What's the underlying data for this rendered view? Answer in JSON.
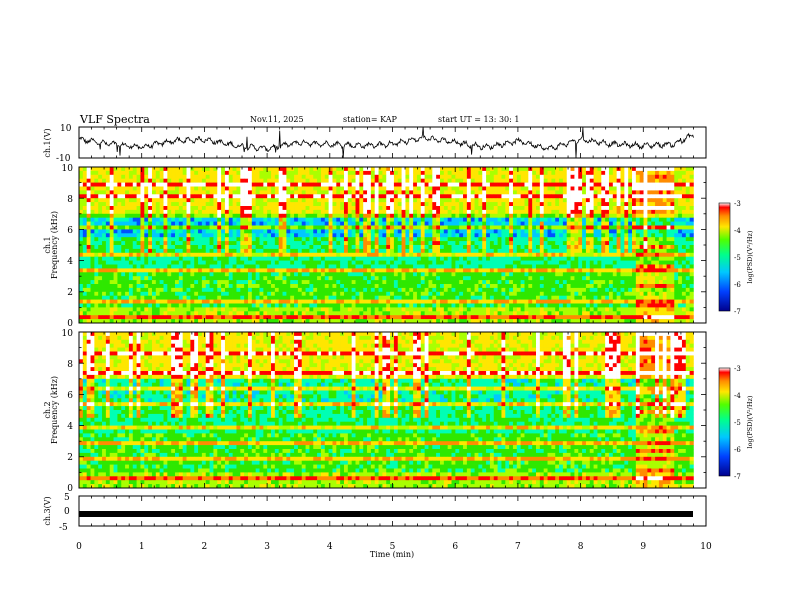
{
  "header": {
    "title": "VLF Spectra",
    "date": "Nov.11, 2025",
    "station": "station= KAP",
    "start": "start  UT  =   13: 30: 1"
  },
  "chart_data": [
    {
      "type": "line",
      "panel": "ch1-waveform",
      "ylabel": "ch.1(V)",
      "ylim": [
        -10,
        10
      ],
      "yticks": [
        "10",
        "-10"
      ],
      "xlim": [
        0,
        10
      ],
      "x": [
        0,
        0.5,
        1,
        1.5,
        2,
        2.5,
        3,
        3.5,
        4,
        4.5,
        5,
        5.5,
        6,
        6.5,
        7,
        7.5,
        8,
        8.5,
        9,
        9.5,
        9.8
      ],
      "values": [
        2,
        -1,
        -3,
        1,
        2,
        -2,
        -4,
        0,
        -1,
        -2,
        -1,
        3,
        0,
        -3,
        1,
        -4,
        2,
        -1,
        -2,
        -1,
        5
      ]
    },
    {
      "type": "heatmap",
      "panel": "ch1-spectrogram",
      "ylabel": "Frequency (kHz)",
      "channel": "ch.1",
      "ylim": [
        0,
        10
      ],
      "yticks": [
        "10",
        "8",
        "6",
        "4",
        "2",
        "0"
      ],
      "xlim": [
        0,
        10
      ],
      "colorbar": {
        "label": "log(PSD)(V²/Hz)",
        "range": [
          -7,
          -3
        ],
        "ticks": [
          "-3",
          "-4",
          "-5",
          "-6",
          "-7"
        ]
      }
    },
    {
      "type": "heatmap",
      "panel": "ch2-spectrogram",
      "ylabel": "Frequency (kHz)",
      "channel": "ch.2",
      "ylim": [
        0,
        10
      ],
      "yticks": [
        "10",
        "8",
        "6",
        "4",
        "2",
        "0"
      ],
      "xlim": [
        0,
        10
      ],
      "colorbar": {
        "label": "log(PSD)(V²/Hz)",
        "range": [
          -7,
          -3
        ],
        "ticks": [
          "-3",
          "-4",
          "-5",
          "-6",
          "-7"
        ]
      }
    },
    {
      "type": "line",
      "panel": "ch3-waveform",
      "ylabel": "ch.3(V)",
      "ylim": [
        -5,
        5
      ],
      "yticks": [
        "5",
        "0",
        "-5"
      ],
      "xlim": [
        0,
        10
      ],
      "level": -1,
      "xlabel": "Time  (min)",
      "xticks": [
        "0",
        "1",
        "2",
        "3",
        "4",
        "5",
        "6",
        "7",
        "8",
        "9",
        "10"
      ]
    }
  ],
  "colors": {
    "background": "#ffffff",
    "axes": "#000000",
    "scale": [
      "#0000b4",
      "#0050ff",
      "#00c8ff",
      "#00ffb4",
      "#2ee800",
      "#aaff00",
      "#ffe600",
      "#ff8c00",
      "#ff0000",
      "#ffffff"
    ]
  }
}
